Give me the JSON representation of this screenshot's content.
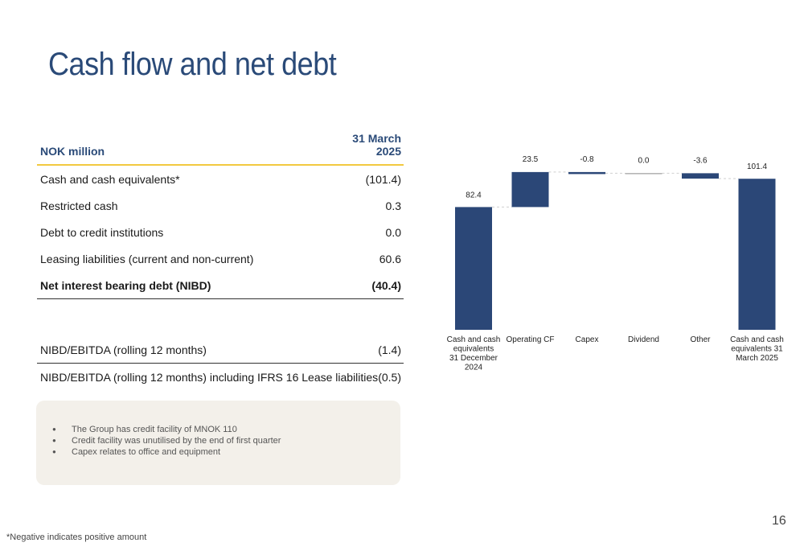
{
  "title": "Cash flow and net debt",
  "table": {
    "header_label": "NOK million",
    "column_line1": "31 March",
    "column_line2": "2025",
    "rows": [
      {
        "label": "Cash and cash equivalents*",
        "value": "(101.4)"
      },
      {
        "label": "Restricted cash",
        "value": "0.3"
      },
      {
        "label": "Debt to credit institutions",
        "value": "0.0"
      },
      {
        "label": "Leasing liabilities (current and non-current)",
        "value": "60.6"
      },
      {
        "label": "Net interest bearing debt (NIBD)",
        "value": "(40.4)"
      }
    ],
    "ratios": [
      {
        "label": "NIBD/EBITDA (rolling 12 months)",
        "value": "(1.4)"
      },
      {
        "label": "NIBD/EBITDA (rolling 12 months) including IFRS 16 Lease liabilities",
        "value": "(0.5)"
      }
    ]
  },
  "notes": [
    "The Group has credit facility of MNOK 110",
    "Credit facility was unutilised by the end of first quarter",
    "Capex relates to office and equipment"
  ],
  "chart_data": {
    "type": "bar",
    "subtype": "waterfall",
    "categories": [
      [
        "Cash and cash",
        "equivalents",
        "31 December",
        "2024"
      ],
      [
        "Operating CF"
      ],
      [
        "Capex"
      ],
      [
        "Dividend"
      ],
      [
        "Other"
      ],
      [
        "Cash and cash",
        "equivalents 31",
        "March 2025"
      ]
    ],
    "values": [
      82.4,
      23.5,
      -0.8,
      0.0,
      -3.6,
      101.4
    ],
    "labels": [
      "82.4",
      "23.5",
      "-0.8",
      "0.0",
      "-3.6",
      "101.4"
    ],
    "totals": [
      true,
      false,
      false,
      false,
      false,
      true
    ],
    "bar_color": "#2b4777",
    "zero_color": "#8a8a8a",
    "connector_color": "#cfcfcf",
    "ylim": [
      0,
      110
    ]
  },
  "page_number": "16",
  "footnote": "*Negative indicates positive amount"
}
